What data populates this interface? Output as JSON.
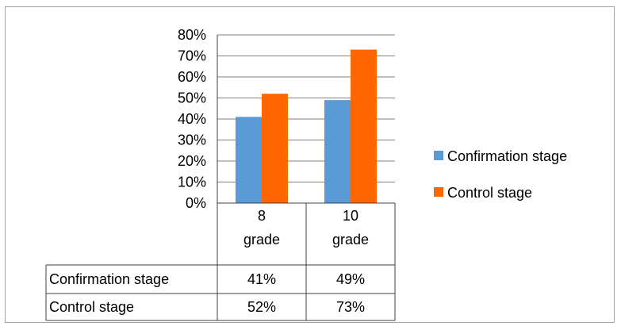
{
  "chart_data": {
    "type": "bar",
    "categories": [
      "8\ngrade",
      "10\ngrade"
    ],
    "series": [
      {
        "name": "Confirmation stage",
        "values": [
          41,
          49
        ],
        "labels": [
          "41%",
          "49%"
        ],
        "color": "#5B9BD5"
      },
      {
        "name": "Control stage",
        "values": [
          52,
          73
        ],
        "labels": [
          "52%",
          "73%"
        ],
        "color": "#FF6600"
      }
    ],
    "ylim": [
      0,
      80
    ],
    "y_ticks": [
      "0%",
      "10%",
      "20%",
      "30%",
      "40%",
      "50%",
      "60%",
      "70%",
      "80%"
    ],
    "gridlines": true,
    "legend_position": "right",
    "data_table": true,
    "title": "",
    "xlabel": "",
    "ylabel": ""
  }
}
